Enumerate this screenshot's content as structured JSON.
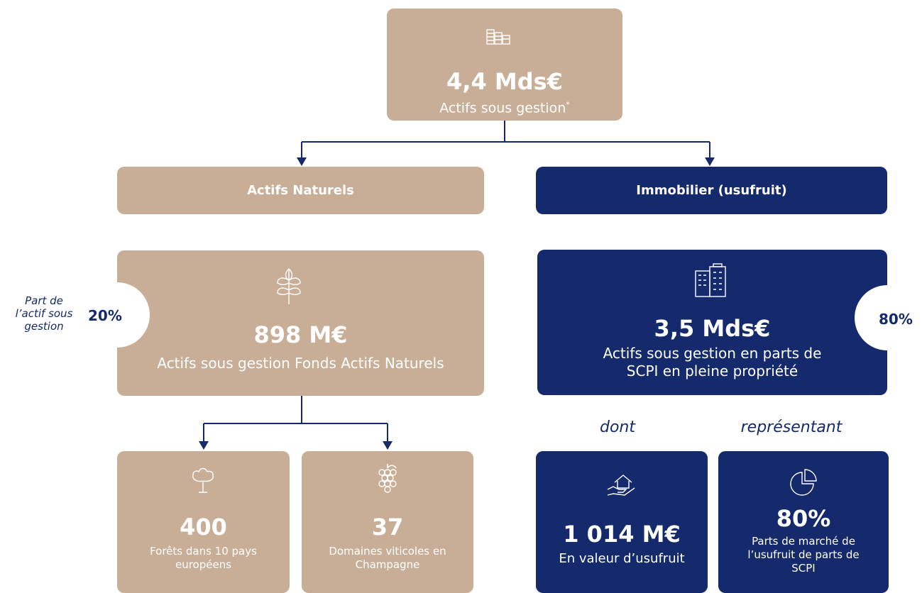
{
  "top": {
    "value": "4,4 Mds€",
    "label": "Actifs sous gestion",
    "note_mark": "*"
  },
  "branches": [
    "Actifs Naturels",
    "Immobilier (usufruit)"
  ],
  "natural": {
    "share_caption": "Part de l’actif sous gestion",
    "share": "20%",
    "value": "898 M€",
    "label": "Actifs sous gestion Fonds Actifs Naturels",
    "items": [
      {
        "value": "400",
        "label": "Forêts dans 10 pays européens"
      },
      {
        "value": "37",
        "label": "Domaines viticoles en Champagne"
      }
    ]
  },
  "real_estate": {
    "share": "80%",
    "value": "3,5 Mds€",
    "label": "Actifs sous gestion en parts de SCPI en pleine propriété",
    "connectors": [
      "dont",
      "représentant"
    ],
    "items": [
      {
        "value": "1 014 M€",
        "label": "En valeur d’usufruit"
      },
      {
        "value": "80%",
        "label": "Parts de marché de l’usufruit de parts de SCPI"
      }
    ]
  }
}
